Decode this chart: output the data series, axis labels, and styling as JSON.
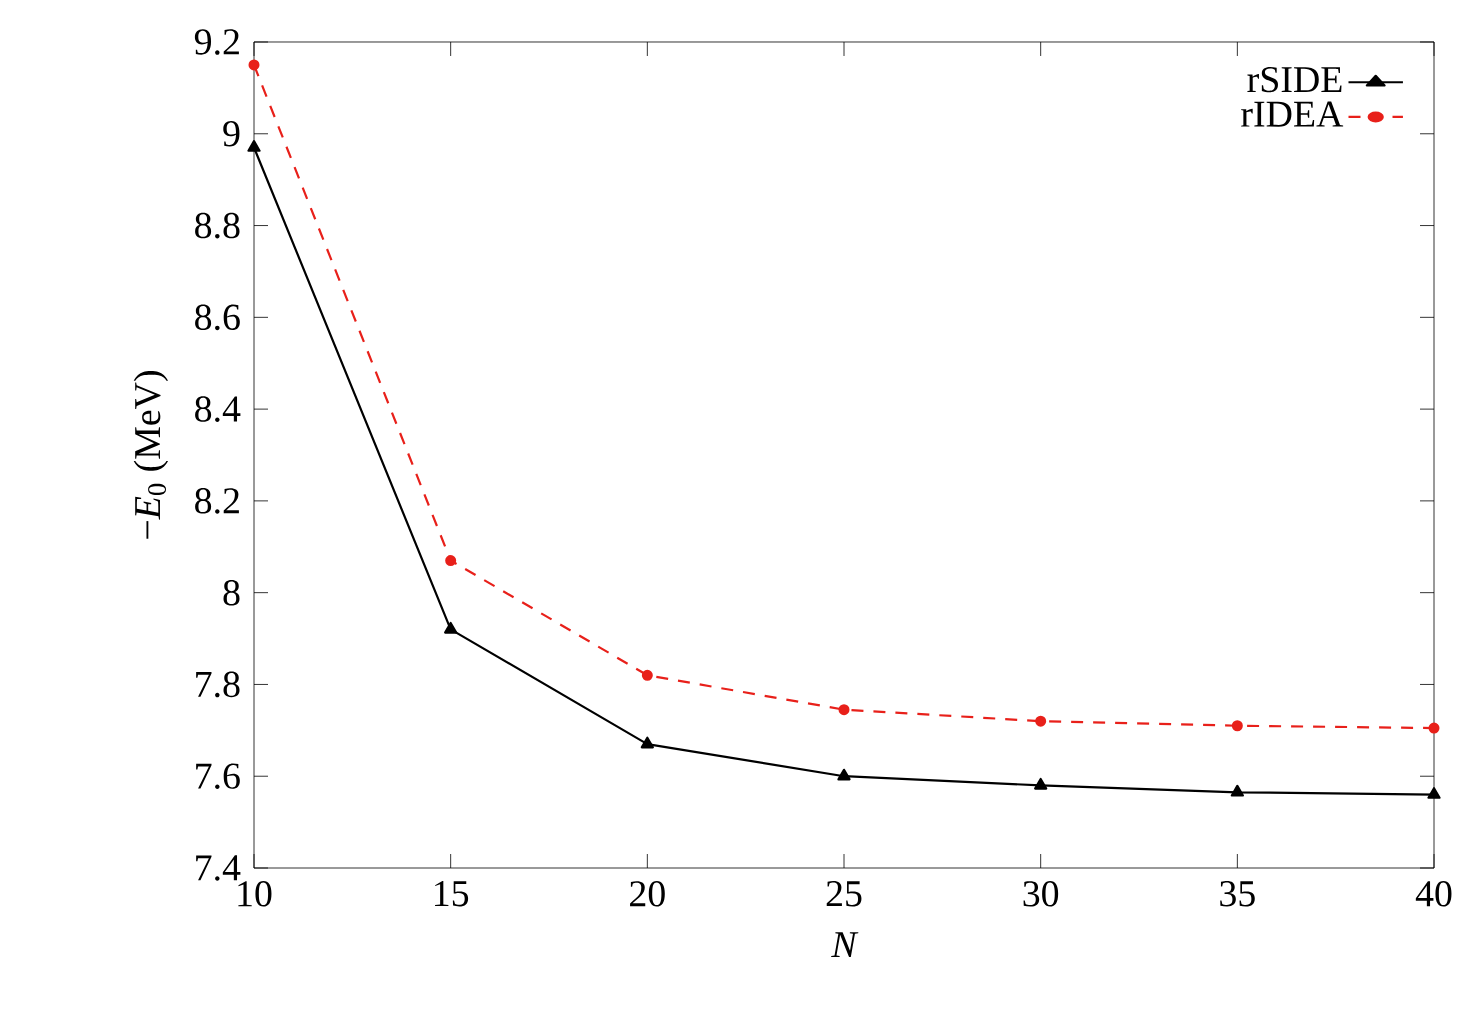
{
  "chart_data": {
    "type": "line",
    "xlabel": "N",
    "ylabel": "−*E*$_{0}$ (MeV)",
    "x": [
      10,
      15,
      20,
      25,
      30,
      35,
      40
    ],
    "series": [
      {
        "name": "rSIDE",
        "color": "#000000",
        "marker": "triangle",
        "line_style": "solid",
        "values": [
          8.97,
          7.92,
          7.67,
          7.6,
          7.58,
          7.565,
          7.56
        ]
      },
      {
        "name": "rIDEA",
        "color": "#e8201a",
        "marker": "circle",
        "line_style": "dashed",
        "values": [
          9.15,
          8.07,
          7.82,
          7.745,
          7.72,
          7.71,
          7.705
        ]
      }
    ],
    "xlim": [
      10,
      40
    ],
    "xticks": [
      10,
      15,
      20,
      25,
      30,
      35,
      40
    ],
    "ylim": [
      7.4,
      9.2
    ],
    "yticks": [
      7.4,
      7.6,
      7.8,
      8,
      8.2,
      8.4,
      8.6,
      8.8,
      9,
      9.2
    ],
    "grid": false,
    "legend": "top right"
  }
}
